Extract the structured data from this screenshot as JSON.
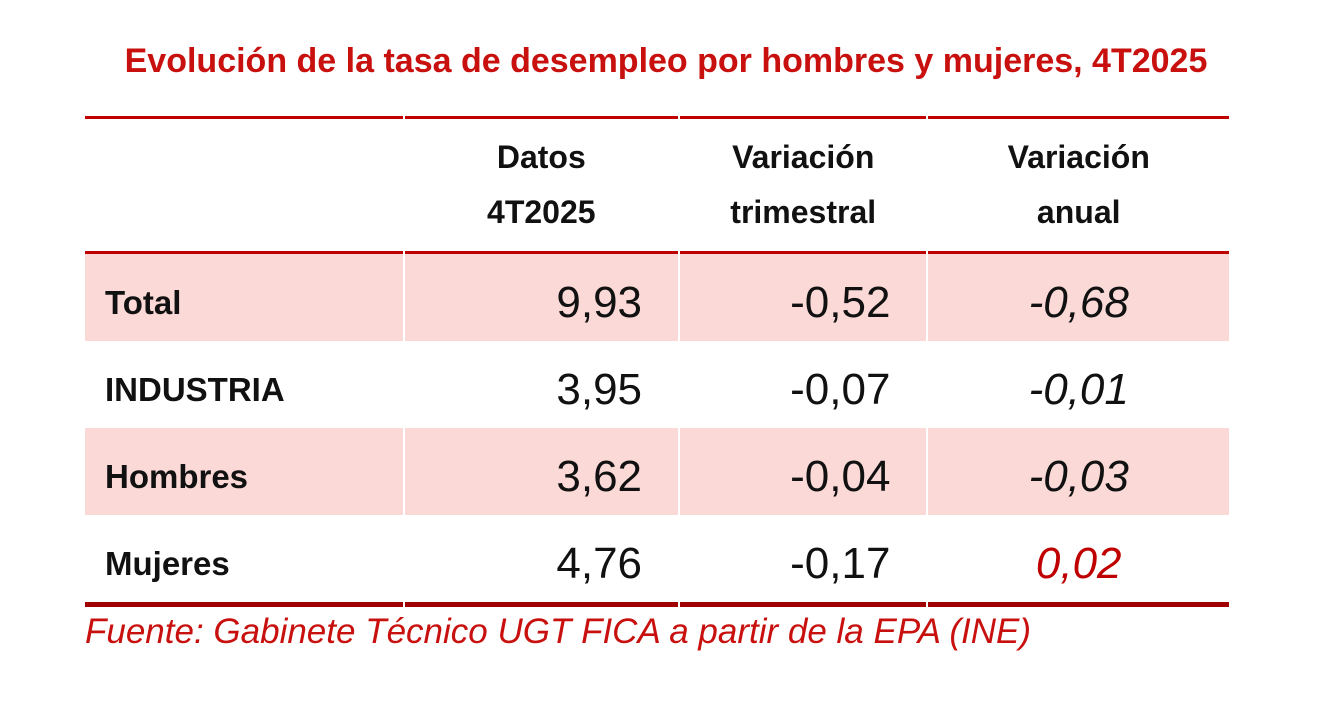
{
  "title": {
    "text": "Evolución de la tasa de desempleo por hombres y mujeres, 4T2025"
  },
  "colors": {
    "accent_red_text": "#C8100E",
    "rule_red": "#C00000",
    "rule_dark_red_bottom": "#A00000",
    "row_pink": "#FAD9D6",
    "highlight_value_red": "#C00000",
    "text_black": "#111111"
  },
  "table": {
    "headers": {
      "col1": "",
      "col2": [
        "Datos",
        "4T2025"
      ],
      "col3": [
        "Variación",
        "trimestral"
      ],
      "col4": [
        "Variación",
        "anual"
      ]
    },
    "rows": [
      {
        "label": "Total",
        "datos": "9,93",
        "var_trimestral": "-0,52",
        "var_anual": "-0,68",
        "pink": true,
        "highlight": false
      },
      {
        "label": "INDUSTRIA",
        "datos": "3,95",
        "var_trimestral": "-0,07",
        "var_anual": "-0,01",
        "pink": false,
        "highlight": false
      },
      {
        "label": "Hombres",
        "datos": "3,62",
        "var_trimestral": "-0,04",
        "var_anual": "-0,03",
        "pink": true,
        "highlight": false
      },
      {
        "label": "Mujeres",
        "datos": "4,76",
        "var_trimestral": "-0,17",
        "var_anual": "0,02",
        "pink": false,
        "highlight": true
      }
    ]
  },
  "footer": {
    "text": "Fuente: Gabinete Técnico UGT FICA a partir de la EPA (INE)"
  },
  "chart_data": {
    "type": "table",
    "title": "Evolución de la tasa de desempleo por hombres y mujeres, 4T2025",
    "columns": [
      "",
      "Datos 4T2025",
      "Variación trimestral",
      "Variación anual"
    ],
    "rows": [
      [
        "Total",
        9.93,
        -0.52,
        -0.68
      ],
      [
        "INDUSTRIA",
        3.95,
        -0.07,
        -0.01
      ],
      [
        "Hombres",
        3.62,
        -0.04,
        -0.03
      ],
      [
        "Mujeres",
        4.76,
        -0.17,
        0.02
      ]
    ],
    "source": "Fuente: Gabinete Técnico UGT FICA a partir de la EPA (INE)",
    "notes": "Decimal comma formatting; 'Mujeres' annual variation 0,02 highlighted in red italic; alternating pink row shading on Total and Hombres rows."
  }
}
